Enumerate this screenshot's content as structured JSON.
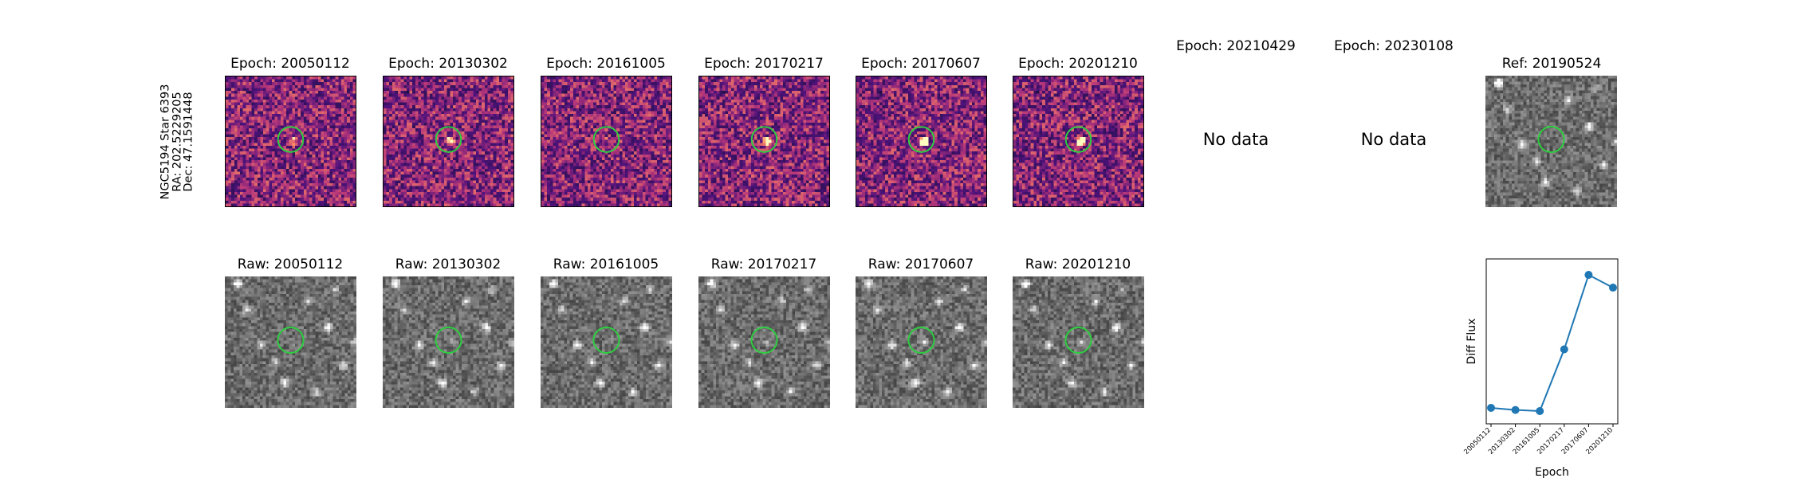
{
  "target": {
    "name": "NGC5194 Star 6393",
    "ra": "RA: 202.5229205",
    "dec": "Dec: 47.1591448"
  },
  "diff_titles": [
    "Epoch: 20050112",
    "Epoch: 20130302",
    "Epoch: 20161005",
    "Epoch: 20170217",
    "Epoch: 20170607",
    "Epoch: 20201210",
    "Epoch: 20210429",
    "Epoch: 20230108"
  ],
  "no_data_label": "No data",
  "ref_title": "Ref: 20190524",
  "raw_titles": [
    "Raw: 20050112",
    "Raw: 20130302",
    "Raw: 20161005",
    "Raw: 20170217",
    "Raw: 20170607",
    "Raw: 20201210"
  ],
  "colors": {
    "circle": "#2ecc40",
    "line": "#1f77b4"
  },
  "chart_data": {
    "type": "line",
    "xlabel": "Epoch",
    "ylabel": "Diff Flux",
    "categories": [
      "20050112",
      "20130302",
      "20161005",
      "20170217",
      "20170607",
      "20201210"
    ],
    "values": [
      0.05,
      0.03,
      0.02,
      0.6,
      1.3,
      1.18
    ],
    "ylim": [
      -0.1,
      1.45
    ],
    "y_ticks_shown": false,
    "grid": false,
    "marker": "circle"
  }
}
